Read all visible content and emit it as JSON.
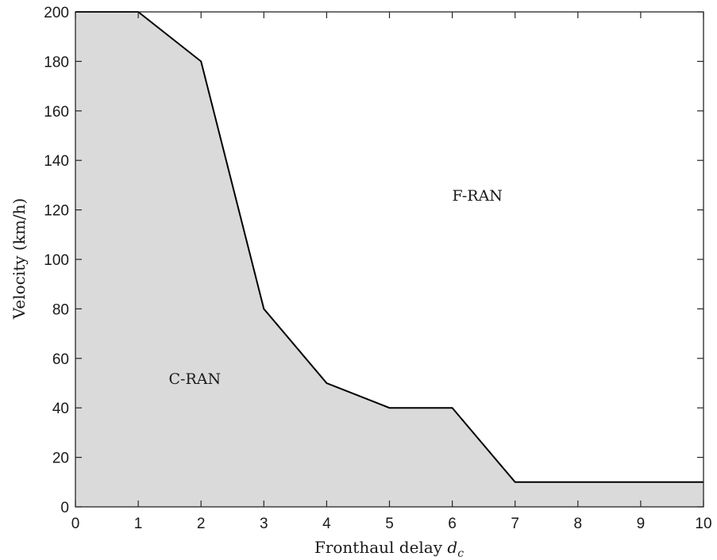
{
  "chart_data": {
    "type": "area",
    "x": [
      0,
      1,
      2,
      3,
      4,
      5,
      6,
      7,
      8,
      9,
      10
    ],
    "series": [
      {
        "values": [
          200,
          200,
          180,
          80,
          50,
          40,
          40,
          10,
          10,
          10,
          10
        ]
      }
    ],
    "xlim": [
      0,
      10
    ],
    "ylim": [
      0,
      200
    ],
    "xticks": [
      "0",
      "1",
      "2",
      "3",
      "4",
      "5",
      "6",
      "7",
      "8",
      "9",
      "10"
    ],
    "yticks": [
      "0",
      "20",
      "40",
      "60",
      "80",
      "100",
      "120",
      "140",
      "160",
      "180",
      "200"
    ],
    "xlabel_text": "Fronthaul delay ",
    "xlabel_var": "d",
    "xlabel_sub": "c",
    "ylabel": "Velocity (km/h)",
    "annotations": [
      {
        "text": "C-RAN",
        "x": 1.9,
        "y": 52
      },
      {
        "text": "F-RAN",
        "x": 6.4,
        "y": 126
      }
    ],
    "grid": false,
    "fill_color": "#dadada",
    "line_color": "#000000"
  }
}
